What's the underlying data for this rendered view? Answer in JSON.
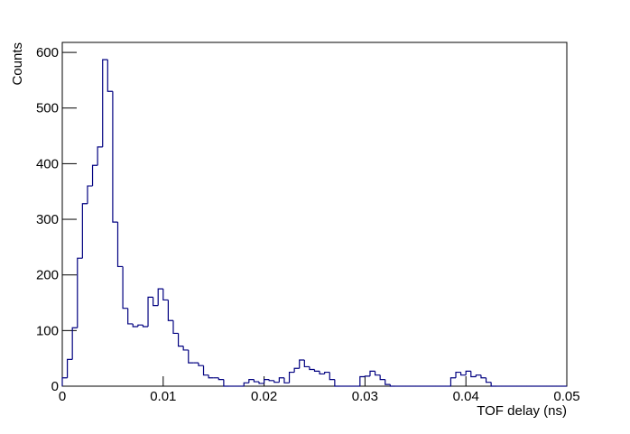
{
  "chart_data": {
    "type": "histogram",
    "x_label": "TOF delay (ns)",
    "y_label": "Counts",
    "color": "#000080",
    "bins": [
      0,
      0.0005,
      0.001,
      0.0015,
      0.002,
      0.0025,
      0.003,
      0.0035,
      0.004,
      0.0045,
      0.005,
      0.0055,
      0.006,
      0.0065,
      0.007,
      0.0075,
      0.008,
      0.0085,
      0.009,
      0.0095,
      0.01,
      0.0105,
      0.011,
      0.0115,
      0.012,
      0.0125,
      0.013,
      0.0135,
      0.014,
      0.0145,
      0.015,
      0.0155,
      0.016,
      0.0165,
      0.017,
      0.0175,
      0.018,
      0.0185,
      0.019,
      0.0195,
      0.02,
      0.0205,
      0.021,
      0.0215,
      0.022,
      0.0225,
      0.023,
      0.0235,
      0.024,
      0.0245,
      0.025,
      0.0255,
      0.026,
      0.0265,
      0.027,
      0.0275,
      0.028,
      0.0285,
      0.029,
      0.0295,
      0.03,
      0.0305,
      0.031,
      0.0315,
      0.032,
      0.0325,
      0.033,
      0.0335,
      0.034,
      0.0345,
      0.035,
      0.0355,
      0.036,
      0.0365,
      0.037,
      0.0375,
      0.038,
      0.0385,
      0.039,
      0.0395,
      0.04,
      0.0405,
      0.041,
      0.0415,
      0.042,
      0.0425,
      0.043,
      0.0435,
      0.044,
      0.0445,
      0.045,
      0.0455,
      0.046,
      0.0465,
      0.047,
      0.0475,
      0.048,
      0.0485,
      0.049,
      0.0495,
      0.05
    ],
    "values": [
      15,
      48,
      105,
      230,
      328,
      360,
      397,
      430,
      587,
      530,
      295,
      215,
      140,
      112,
      107,
      110,
      107,
      160,
      145,
      175,
      155,
      118,
      95,
      72,
      65,
      42,
      42,
      37,
      20,
      15,
      15,
      12,
      0,
      0,
      0,
      0,
      6,
      12,
      8,
      5,
      12,
      10,
      7,
      15,
      6,
      25,
      32,
      47,
      35,
      30,
      27,
      22,
      25,
      12,
      0,
      0,
      0,
      0,
      0,
      17,
      18,
      27,
      20,
      12,
      3,
      0,
      0,
      0,
      0,
      0,
      0,
      0,
      0,
      0,
      0,
      0,
      0,
      15,
      25,
      20,
      27,
      17,
      20,
      15,
      7,
      0,
      0,
      0,
      0,
      0,
      0,
      0,
      0,
      0,
      0,
      0,
      0,
      0,
      0,
      0
    ],
    "xlim": [
      0,
      0.05
    ],
    "xticks": [
      0,
      0.01,
      0.02,
      0.03,
      0.04,
      0.05
    ],
    "ylim": [
      0,
      618
    ],
    "yticks": [
      0,
      100,
      200,
      300,
      400,
      500,
      600
    ]
  }
}
